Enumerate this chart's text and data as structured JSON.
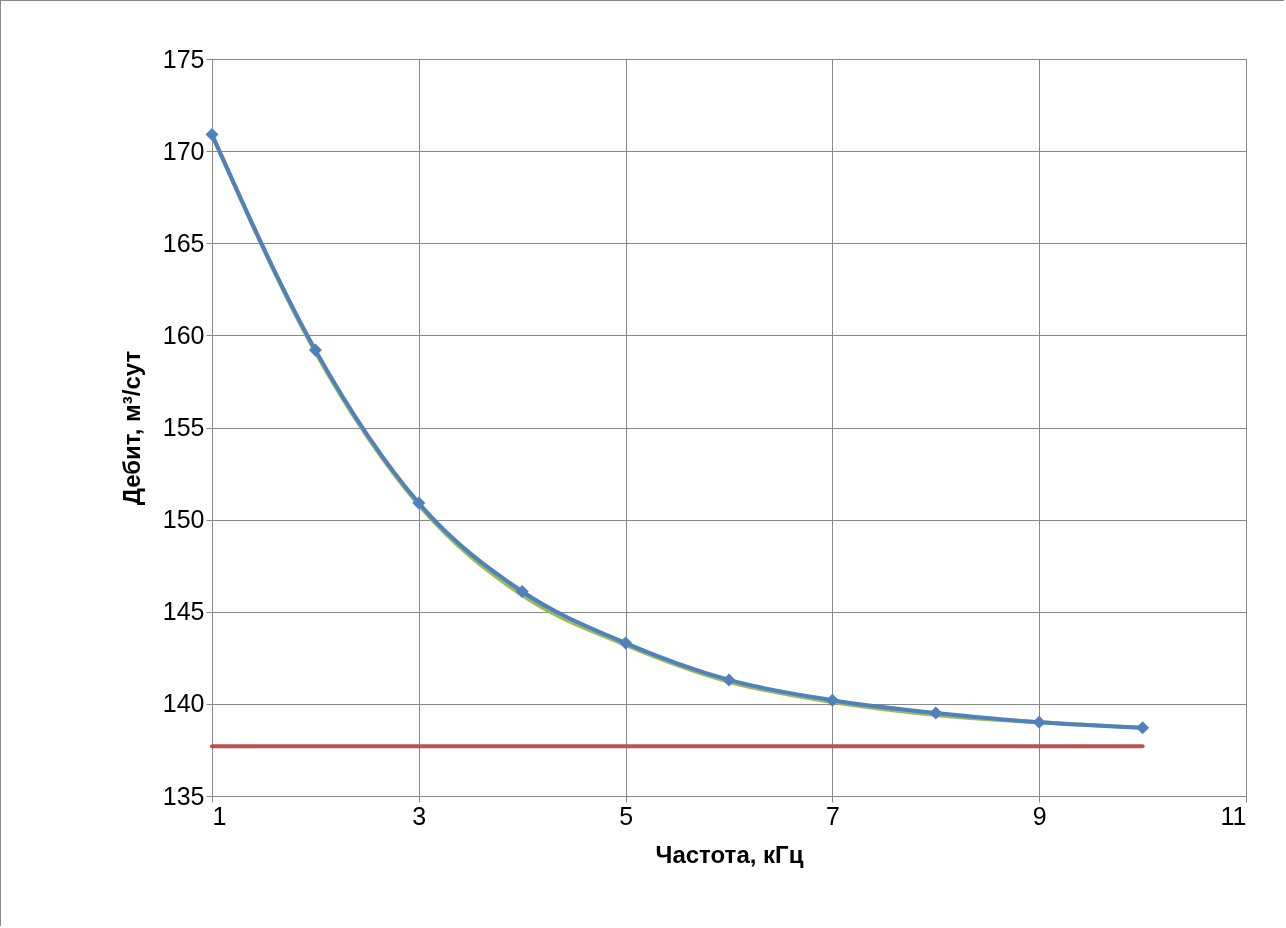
{
  "chart_data": {
    "type": "line",
    "xlabel": "Частота, кГц",
    "ylabel": "Дебит, м³/сут",
    "xlim": [
      1,
      11
    ],
    "xticks": [
      1,
      3,
      5,
      7,
      9,
      11
    ],
    "ylim": [
      135,
      175
    ],
    "yticks": [
      135,
      140,
      145,
      150,
      155,
      160,
      165,
      170,
      175
    ],
    "grid": true,
    "marker": "diamond",
    "line_style": "solid",
    "series": [
      {
        "color": "#9bbb59",
        "marker": "none",
        "x": [
          1,
          2,
          3,
          4,
          5,
          6,
          7,
          8,
          9,
          10
        ],
        "values": [
          170.9,
          159.1,
          150.8,
          145.9,
          143.2,
          141.2,
          140.1,
          139.4,
          139.0,
          138.7
        ]
      },
      {
        "color": "#c0504d",
        "marker": "none",
        "x": [
          1,
          10
        ],
        "values": [
          137.7,
          137.7
        ]
      },
      {
        "color": "#4f81bd",
        "x": [
          1,
          2,
          3,
          4,
          5,
          6,
          7,
          8,
          9,
          10
        ],
        "values": [
          170.9,
          159.2,
          150.9,
          146.1,
          143.3,
          141.3,
          140.2,
          139.5,
          139.0,
          138.7
        ]
      }
    ]
  }
}
